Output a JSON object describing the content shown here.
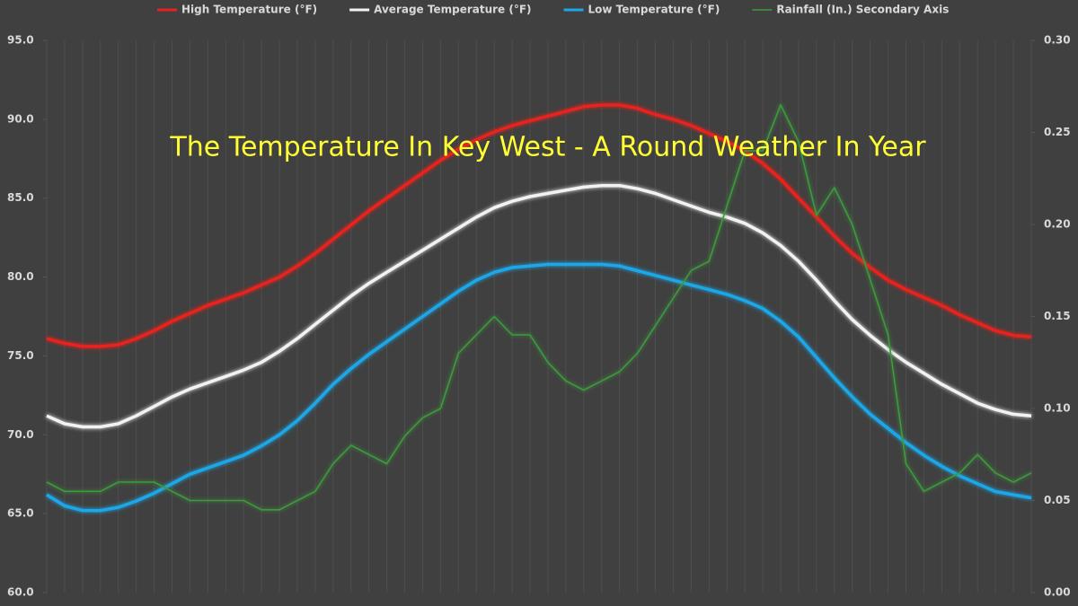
{
  "chart_data": {
    "type": "line",
    "annotation": "The Temperature In Key West -  A Round Weather In Year",
    "categories": [
      null,
      null,
      null,
      null,
      null,
      null,
      null,
      null,
      null,
      null,
      null,
      null,
      null,
      null,
      null,
      null,
      null,
      null,
      null,
      null,
      null,
      null,
      null,
      null,
      null,
      null,
      null,
      null,
      null,
      null,
      null,
      null,
      null,
      null,
      null,
      null,
      null,
      null,
      null,
      null,
      null,
      null,
      null,
      null,
      null,
      null,
      null,
      null,
      null,
      null,
      null,
      null,
      null,
      null,
      null,
      null
    ],
    "series": [
      {
        "name": "High Temperature (°F)",
        "color": "#e8211e",
        "values": [
          76.1,
          75.8,
          75.6,
          75.6,
          75.7,
          76.1,
          76.6,
          77.2,
          77.7,
          78.2,
          78.6,
          79.0,
          79.5,
          80.0,
          80.7,
          81.5,
          82.4,
          83.3,
          84.2,
          85.0,
          85.8,
          86.6,
          87.4,
          88.1,
          88.7,
          89.2,
          89.6,
          89.9,
          90.2,
          90.5,
          90.8,
          90.9,
          90.9,
          90.7,
          90.3,
          90.0,
          89.6,
          89.1,
          88.6,
          88.0,
          87.2,
          86.2,
          85.0,
          83.8,
          82.6,
          81.5,
          80.6,
          79.8,
          79.2,
          78.7,
          78.2,
          77.6,
          77.1,
          76.6,
          76.3,
          76.2
        ]
      },
      {
        "name": "Average Temperature (°F)",
        "color": "#f2f2f2",
        "values": [
          71.2,
          70.7,
          70.5,
          70.5,
          70.7,
          71.2,
          71.8,
          72.4,
          72.9,
          73.3,
          73.7,
          74.1,
          74.6,
          75.3,
          76.1,
          77.0,
          77.9,
          78.8,
          79.6,
          80.3,
          81.0,
          81.7,
          82.4,
          83.1,
          83.8,
          84.4,
          84.8,
          85.1,
          85.3,
          85.5,
          85.7,
          85.8,
          85.8,
          85.6,
          85.3,
          84.9,
          84.5,
          84.1,
          83.8,
          83.4,
          82.8,
          82.0,
          81.0,
          79.8,
          78.5,
          77.3,
          76.3,
          75.4,
          74.6,
          73.9,
          73.2,
          72.6,
          72.0,
          71.6,
          71.3,
          71.2
        ]
      },
      {
        "name": "Low Temperature (°F)",
        "color": "#1ea7e8",
        "values": [
          66.2,
          65.5,
          65.2,
          65.2,
          65.4,
          65.8,
          66.3,
          66.9,
          67.5,
          67.9,
          68.3,
          68.7,
          69.3,
          70.0,
          70.9,
          72.0,
          73.2,
          74.2,
          75.1,
          75.9,
          76.7,
          77.5,
          78.3,
          79.1,
          79.8,
          80.3,
          80.6,
          80.7,
          80.8,
          80.8,
          80.8,
          80.8,
          80.7,
          80.4,
          80.1,
          79.8,
          79.5,
          79.2,
          78.9,
          78.5,
          78.0,
          77.2,
          76.2,
          74.9,
          73.6,
          72.4,
          71.3,
          70.4,
          69.5,
          68.7,
          68.0,
          67.4,
          66.9,
          66.4,
          66.2,
          66.0
        ]
      },
      {
        "name": "Rainfall (In.) Secondary Axis",
        "color": "#3c9a3c",
        "axis": "y2",
        "values": [
          0.06,
          0.055,
          0.055,
          0.055,
          0.06,
          0.06,
          0.06,
          0.055,
          0.05,
          0.05,
          0.05,
          0.05,
          0.045,
          0.045,
          0.05,
          0.055,
          0.07,
          0.08,
          0.075,
          0.07,
          0.085,
          0.095,
          0.1,
          0.13,
          0.14,
          0.15,
          0.14,
          0.14,
          0.125,
          0.115,
          0.11,
          0.115,
          0.12,
          0.13,
          0.145,
          0.16,
          0.175,
          0.18,
          0.21,
          0.24,
          0.24,
          0.265,
          0.245,
          0.205,
          0.22,
          0.2,
          0.17,
          0.14,
          0.07,
          0.055,
          0.06,
          0.065,
          0.075,
          0.065,
          0.06,
          0.065
        ]
      }
    ],
    "ylim": [
      60,
      95
    ],
    "yticks": [
      {
        "value": 60,
        "label": "60.0"
      },
      {
        "value": 65,
        "label": "65.0"
      },
      {
        "value": 70,
        "label": "70.0"
      },
      {
        "value": 75,
        "label": "75.0"
      },
      {
        "value": 80,
        "label": "80.0"
      },
      {
        "value": 85,
        "label": "85.0"
      },
      {
        "value": 90,
        "label": "90.0"
      },
      {
        "value": 95,
        "label": "95.0"
      }
    ],
    "y2lim": [
      0,
      0.3
    ],
    "y2ticks": [
      {
        "value": 0,
        "label": "0.00"
      },
      {
        "value": 0.05,
        "label": "0.05"
      },
      {
        "value": 0.1,
        "label": "0.10"
      },
      {
        "value": 0.15,
        "label": "0.15"
      },
      {
        "value": 0.2,
        "label": "0.20"
      },
      {
        "value": 0.25,
        "label": "0.25"
      },
      {
        "value": 0.3,
        "label": "0.30"
      }
    ],
    "grid": true,
    "legend": "top"
  }
}
